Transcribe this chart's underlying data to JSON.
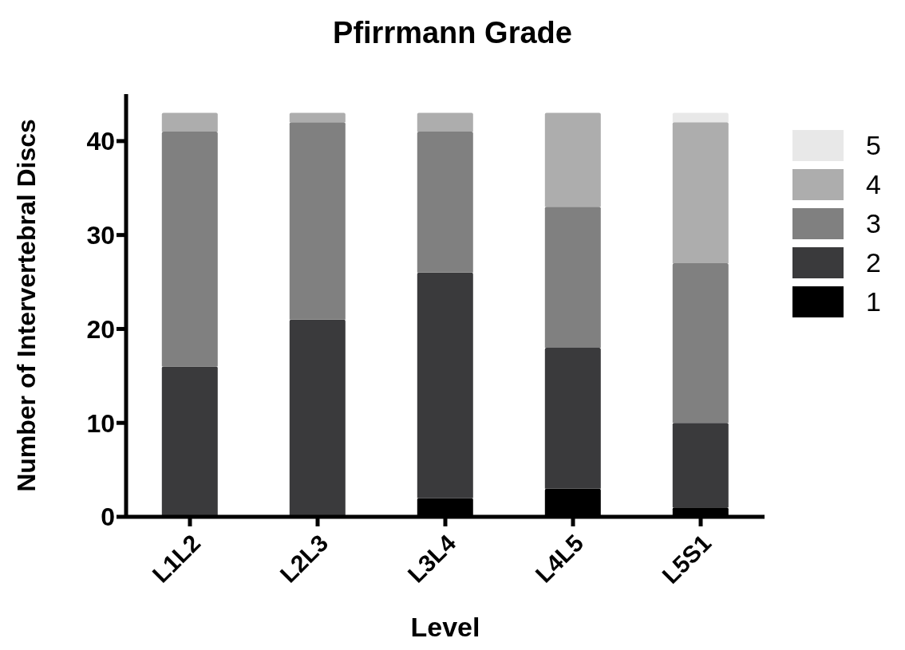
{
  "chart_data": {
    "type": "bar",
    "title": "Pfirrmann Grade",
    "xlabel": "Level",
    "ylabel": "Number of Intervertebral Discs",
    "categories": [
      "L1L2",
      "L2L3",
      "L3L4",
      "L4L5",
      "L5S1"
    ],
    "stacked": true,
    "ylim": [
      0,
      45
    ],
    "yticks": [
      0,
      10,
      20,
      30,
      40
    ],
    "grid": false,
    "legend": "right",
    "series": [
      {
        "name": "1",
        "color": "#000000",
        "values": [
          0,
          0,
          2,
          3,
          1
        ]
      },
      {
        "name": "2",
        "color": "#3a3a3c",
        "values": [
          16,
          21,
          24,
          15,
          9
        ]
      },
      {
        "name": "3",
        "color": "#808080",
        "values": [
          25,
          21,
          15,
          15,
          17
        ]
      },
      {
        "name": "4",
        "color": "#adadad",
        "values": [
          2,
          1,
          2,
          10,
          15
        ]
      },
      {
        "name": "5",
        "color": "#e8e8e8",
        "values": [
          0,
          0,
          0,
          0,
          1
        ]
      }
    ]
  }
}
